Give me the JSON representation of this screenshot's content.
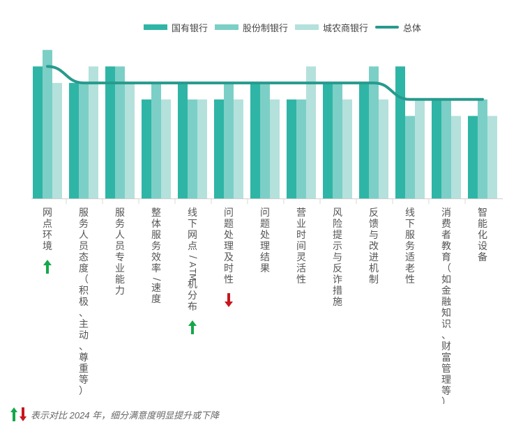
{
  "legend": {
    "items": [
      {
        "label": "国有银行",
        "color": "#2fb5a6",
        "kind": "rect"
      },
      {
        "label": "股份制银行",
        "color": "#7ccfc6",
        "kind": "rect"
      },
      {
        "label": "城农商银行",
        "color": "#b4e1dc",
        "kind": "rect"
      },
      {
        "label": "总体",
        "color": "#279a8d",
        "kind": "line"
      }
    ]
  },
  "footnote": {
    "text": "表示对比 2024 年，细分满意度明显提升或下降",
    "up_color": "#14a84a",
    "down_color": "#c8161d"
  },
  "chart_data": {
    "type": "bar",
    "categories": [
      "网点环境",
      "服务人员态度（积极、主动、尊重等）",
      "服务人员专业能力",
      "整体服务效率/速度",
      "线下网点/ATM机分布",
      "问题处理及时性",
      "问题处理结果",
      "营业时间灵活性",
      "风险提示与反诈措施",
      "反馈与改进机制",
      "线下服务适老性",
      "消费者教育（如金融知识、财富管理等）",
      "智能化设备"
    ],
    "series": [
      {
        "name": "国有银行",
        "color": "#2fb5a6",
        "values": [
          8,
          7,
          8,
          6,
          7,
          6,
          7,
          6,
          7,
          7,
          8,
          6,
          5
        ]
      },
      {
        "name": "股份制银行",
        "color": "#7ccfc6",
        "values": [
          9,
          7,
          8,
          7,
          6,
          7,
          7,
          6,
          7,
          8,
          5,
          6,
          6
        ]
      },
      {
        "name": "城农商银行",
        "color": "#b4e1dc",
        "values": [
          7,
          8,
          7,
          6,
          6,
          6,
          6,
          8,
          6,
          6,
          6,
          5,
          5
        ]
      }
    ],
    "line": {
      "name": "总体",
      "color": "#279a8d",
      "values": [
        8.0,
        7.0,
        7.0,
        7.0,
        7.0,
        7.0,
        7.0,
        7.0,
        7.0,
        7.0,
        6.0,
        6.0,
        6.0
      ]
    },
    "markers": [
      {
        "category_index": 0,
        "direction": "up"
      },
      {
        "category_index": 4,
        "direction": "up"
      },
      {
        "category_index": 5,
        "direction": "down"
      }
    ],
    "ylim": [
      0,
      9
    ],
    "grid": false,
    "legend_position": "top"
  }
}
